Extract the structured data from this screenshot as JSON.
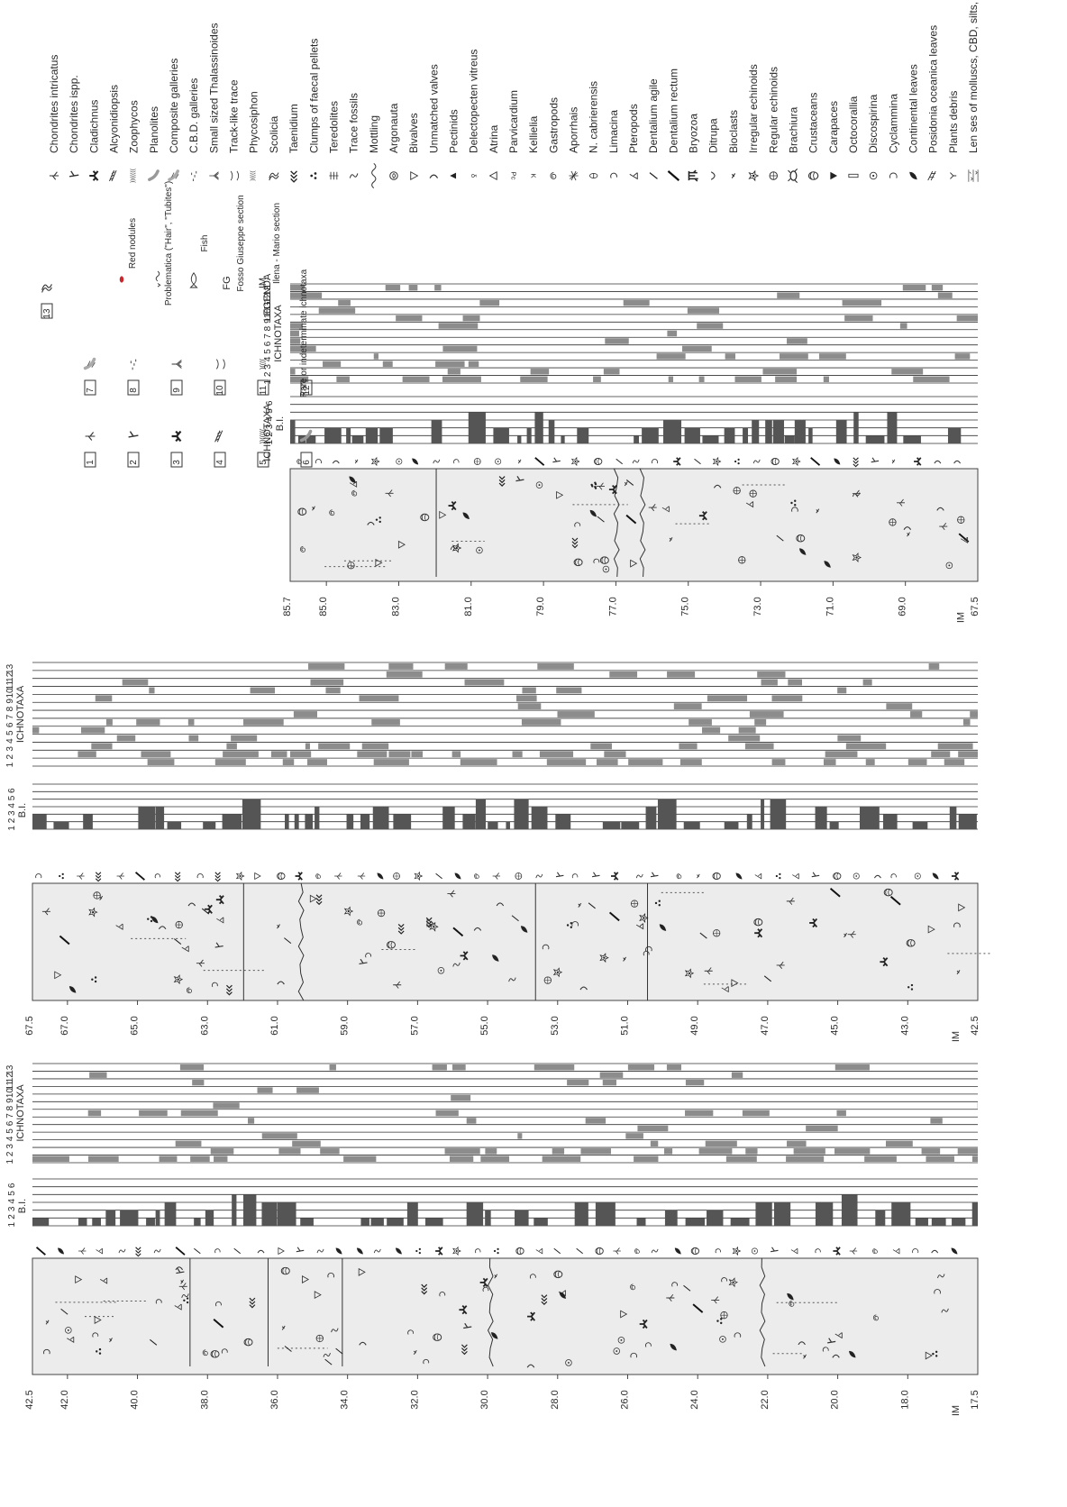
{
  "legend": {
    "title": "LEGENDA",
    "ichnotaxa_heading": "ICHNOTAXA",
    "keys": [
      {
        "num": "1",
        "icon": "chondrites-intricatus-icon"
      },
      {
        "num": "2",
        "icon": "chondrites-ispp-icon"
      },
      {
        "num": "3",
        "icon": "cladichnus-icon"
      },
      {
        "num": "4",
        "icon": "alcyonidiopsis-icon"
      },
      {
        "num": "5",
        "icon": "zoophycos-icon"
      },
      {
        "num": "6",
        "icon": "planolites-icon"
      },
      {
        "num": "7",
        "icon": "composite-galleries-icon"
      },
      {
        "num": "8",
        "icon": "cbd-galleries-icon"
      },
      {
        "num": "9",
        "icon": "small-thalassinoides-icon"
      },
      {
        "num": "10",
        "icon": "track-like-trace-icon"
      },
      {
        "num": "11",
        "icon": "phycosiphon-icon"
      },
      {
        "num": "12",
        "label": "Rare or indeterminate ichnotaxa"
      },
      {
        "num": "13",
        "icon": "scolicia-icon"
      }
    ],
    "extra": [
      {
        "label": "Red nodules",
        "icon": "red-nodule-icon"
      },
      {
        "label": "Problematica (\"Hair\", \"Tubites\")",
        "icon": "problematica-icon"
      },
      {
        "label": "Fish",
        "icon": "fish-icon"
      },
      {
        "code": "FG",
        "label": "Fosso Giuseppe section"
      },
      {
        "code": "IM",
        "label": "Ilena - Mario section"
      }
    ],
    "symbols": [
      {
        "label": "Chondrites intricatus",
        "icon": "chondrites-intricatus-icon"
      },
      {
        "label": "Chondrites ispp.",
        "icon": "chondrites-ispp-icon"
      },
      {
        "label": "Cladichnus",
        "icon": "cladichnus-icon"
      },
      {
        "label": "Alcyonidiopsis",
        "icon": "alcyonidiopsis-icon"
      },
      {
        "label": "Zoophycos",
        "icon": "zoophycos-icon"
      },
      {
        "label": "Planolites",
        "icon": "planolites-icon"
      },
      {
        "label": "Composite galleries",
        "icon": "composite-galleries-icon"
      },
      {
        "label": "C.B.D. galleries",
        "icon": "cbd-galleries-icon"
      },
      {
        "label": "Small sized Thalassinoides",
        "icon": "small-thalassinoides-icon"
      },
      {
        "label": "Track-like trace",
        "icon": "track-like-trace-icon"
      },
      {
        "label": "Phycosiphon",
        "icon": "phycosiphon-icon"
      },
      {
        "label": "Scolicia",
        "icon": "scolicia-icon"
      },
      {
        "label": "Taenidium",
        "icon": "taenidium-icon"
      },
      {
        "label": "Clumps of faecal pellets",
        "icon": "faecal-pellets-icon"
      },
      {
        "label": "Teredolites",
        "icon": "teredolites-icon"
      },
      {
        "label": "Trace fossils",
        "icon": "trace-fossils-icon"
      },
      {
        "label": "Mottling",
        "icon": "mottling-icon"
      },
      {
        "label": "Argonauta",
        "icon": "argonauta-icon"
      },
      {
        "label": "Bivalves",
        "icon": "bivalves-icon"
      },
      {
        "label": "Unmatched valves",
        "icon": "unmatched-valves-icon"
      },
      {
        "label": "Pectinids",
        "icon": "pectinids-icon"
      },
      {
        "label": "Delectopecten vitreus",
        "icon": "delectopecten-icon"
      },
      {
        "label": "Atrina",
        "icon": "atrina-icon"
      },
      {
        "label": "Parvicardium",
        "icon": "parvicardium-icon",
        "glyph": "Pc"
      },
      {
        "label": "Kellielia",
        "icon": "kellielia-icon",
        "glyph": "K"
      },
      {
        "label": "Gastropods",
        "icon": "gastropods-icon"
      },
      {
        "label": "Aporrhais",
        "icon": "aporrhais-icon"
      },
      {
        "label": "N. cabrierensis",
        "icon": "n-cabrierensis-icon"
      },
      {
        "label": "Limacina",
        "icon": "limacina-icon"
      },
      {
        "label": "Pteropods",
        "icon": "pteropods-icon"
      },
      {
        "label": "Dentalium agile",
        "icon": "dentalium-agile-icon"
      },
      {
        "label": "Dentalium rectum",
        "icon": "dentalium-rectum-icon"
      },
      {
        "label": "Bryozoa",
        "icon": "bryozoa-icon"
      },
      {
        "label": "Ditrupa",
        "icon": "ditrupa-icon"
      },
      {
        "label": "Bioclasts",
        "icon": "bioclasts-icon"
      },
      {
        "label": "Irregular echinoids",
        "icon": "irregular-echinoids-icon"
      },
      {
        "label": "Regular echinoids",
        "icon": "regular-echinoids-icon"
      },
      {
        "label": "Brachiura",
        "icon": "brachiura-icon"
      },
      {
        "label": "Crustaceans",
        "icon": "crustaceans-icon"
      },
      {
        "label": "Carapaces",
        "icon": "carapaces-icon"
      },
      {
        "label": "Octocorallia",
        "icon": "octocorallia-icon"
      },
      {
        "label": "Discospirina",
        "icon": "discospirina-icon"
      },
      {
        "label": "Cyclammina",
        "icon": "cyclammina-icon"
      },
      {
        "label": "Continental leaves",
        "icon": "continental-leaves-icon"
      },
      {
        "label": "Posidonia oceanica leaves",
        "icon": "posidonia-icon"
      },
      {
        "label": "Plants debris",
        "icon": "plants-debris-icon"
      },
      {
        "label": "Len ses of molluscs, CBD, silts, plant debris, etc.",
        "icon": "lenses-icon"
      }
    ]
  },
  "columns": [
    {
      "id": "top",
      "section": "IM",
      "top_depth": "85.7",
      "bottom_depth": "67.5",
      "ticks": [
        "85.0",
        "83.0",
        "81.0",
        "79.0",
        "77.0",
        "75.0",
        "73.0",
        "71.0",
        "69.0"
      ],
      "bi_label": "B.I.",
      "bi_scale": [
        "1",
        "2",
        "3",
        "4",
        "5",
        "6"
      ],
      "ichno_label": "ICHNOTAXA",
      "ichno_scale": [
        "1",
        "2",
        "3",
        "4",
        "5",
        "6",
        "7",
        "8",
        "9",
        "10",
        "11",
        "12",
        "13"
      ]
    },
    {
      "id": "middle",
      "section": "IM",
      "top_depth": "67.5",
      "bottom_depth": "42.5",
      "ticks": [
        "67.0",
        "65.0",
        "63.0",
        "61.0",
        "59.0",
        "57.0",
        "55.0",
        "53.0",
        "51.0",
        "49.0",
        "47.0",
        "45.0",
        "43.0"
      ],
      "bi_label": "B.I.",
      "bi_scale": [
        "1",
        "2",
        "3",
        "4",
        "5",
        "6"
      ],
      "ichno_label": "ICHNOTAXA",
      "ichno_scale": [
        "1",
        "2",
        "3",
        "4",
        "5",
        "6",
        "7",
        "8",
        "9",
        "10",
        "11",
        "12",
        "13"
      ]
    },
    {
      "id": "bottom",
      "section": "IM",
      "top_depth": "42.5",
      "bottom_depth": "17.5",
      "ticks": [
        "42.0",
        "40.0",
        "38.0",
        "36.0",
        "34.0",
        "32.0",
        "30.0",
        "28.0",
        "26.0",
        "24.0",
        "22.0",
        "20.0",
        "18.0"
      ],
      "bi_label": "B.I.",
      "bi_scale": [
        "1",
        "2",
        "3",
        "4",
        "5",
        "6"
      ],
      "ichno_label": "ICHNOTAXA",
      "ichno_scale": [
        "1",
        "2",
        "3",
        "4",
        "5",
        "6",
        "7",
        "8",
        "9",
        "10",
        "11",
        "12",
        "13"
      ]
    }
  ]
}
